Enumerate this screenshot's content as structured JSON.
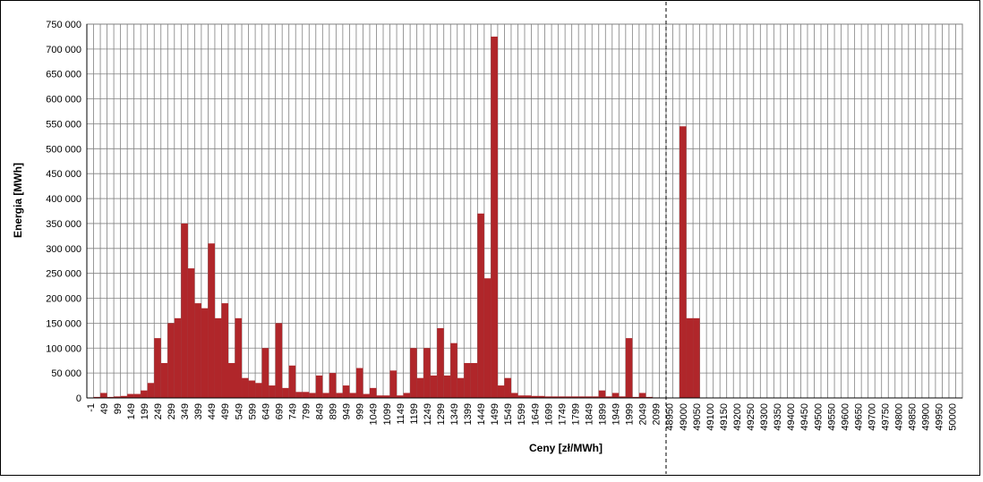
{
  "chart_data": {
    "type": "bar",
    "x_label": "Ceny [zł/MWh]",
    "y_label": "Energia [MWh]",
    "color": "#b0262a",
    "grid": true,
    "categories": [
      "-1",
      null,
      "49",
      null,
      "99",
      null,
      "149",
      null,
      "199",
      null,
      "249",
      null,
      "299",
      null,
      "349",
      null,
      "399",
      null,
      "449",
      null,
      "499",
      null,
      "549",
      null,
      "599",
      null,
      "649",
      null,
      "699",
      null,
      "749",
      null,
      "799",
      null,
      "849",
      null,
      "899",
      null,
      "949",
      null,
      "999",
      null,
      "1049",
      null,
      "1099",
      null,
      "1149",
      null,
      "1199",
      null,
      "1249",
      null,
      "1299",
      null,
      "1349",
      null,
      "1399",
      null,
      "1449",
      null,
      "1499",
      null,
      "1549",
      null,
      "1599",
      null,
      "1649",
      null,
      "1699",
      null,
      "1749",
      null,
      "1799",
      null,
      "1849",
      null,
      "1899",
      null,
      "1949",
      null,
      "1999",
      null,
      "2049",
      null,
      "2099",
      null,
      "48950",
      null,
      "49000",
      null,
      "49050",
      null,
      "49100",
      null,
      "49150",
      null,
      "49200",
      null,
      "49250",
      null,
      "49300",
      null,
      "49350",
      null,
      "49400",
      null,
      "49450",
      null,
      "49500",
      null,
      "49550",
      null,
      "49600",
      null,
      "49650",
      null,
      "49700",
      null,
      "49750",
      null,
      "49800",
      null,
      "49850",
      null,
      "49900",
      null,
      "49950",
      null,
      "50000",
      null
    ],
    "values": [
      0,
      2000,
      10000,
      2000,
      3000,
      4000,
      8000,
      8000,
      15000,
      30000,
      120000,
      70000,
      150000,
      160000,
      350000,
      260000,
      190000,
      180000,
      310000,
      160000,
      190000,
      70000,
      160000,
      40000,
      35000,
      30000,
      100000,
      25000,
      150000,
      20000,
      65000,
      12000,
      12000,
      10000,
      45000,
      10000,
      50000,
      10000,
      25000,
      10000,
      60000,
      8000,
      20000,
      5000,
      5000,
      55000,
      5000,
      10000,
      100000,
      40000,
      100000,
      45000,
      140000,
      45000,
      110000,
      40000,
      70000,
      70000,
      370000,
      240000,
      725000,
      25000,
      40000,
      10000,
      5000,
      5000,
      4000,
      4000,
      3000,
      3000,
      3000,
      3000,
      3000,
      3000,
      3000,
      3000,
      15000,
      3000,
      10000,
      3000,
      120000,
      2000,
      10000,
      2000,
      1000,
      0,
      0,
      0,
      545000,
      160000,
      160000,
      0,
      0,
      0,
      0,
      0,
      0,
      0,
      0,
      0,
      0,
      0,
      0,
      0,
      0,
      0,
      0,
      0,
      0,
      0,
      0,
      0,
      0,
      0,
      0,
      0,
      0,
      0,
      0,
      0,
      0,
      0,
      0,
      0,
      0,
      0,
      0,
      0,
      0,
      0
    ],
    "ylim": [
      0,
      750000
    ],
    "yticks": [
      0,
      {
        "value": 50000,
        "label": "50 000"
      },
      {
        "value": 100000,
        "label": "100 000"
      },
      {
        "value": 150000,
        "label": "150 000"
      },
      {
        "value": 200000,
        "label": "200 000"
      },
      {
        "value": 250000,
        "label": "250 000"
      },
      {
        "value": 300000,
        "label": "300 000"
      },
      {
        "value": 350000,
        "label": "350 000"
      },
      {
        "value": 400000,
        "label": "400 000"
      },
      {
        "value": 450000,
        "label": "450 000"
      },
      {
        "value": 500000,
        "label": "500 000"
      },
      {
        "value": 550000,
        "label": "550 000"
      },
      {
        "value": 600000,
        "label": "600 000"
      },
      {
        "value": 650000,
        "label": "650 000"
      },
      {
        "value": 700000,
        "label": "700 000"
      },
      {
        "value": 750000,
        "label": "750 000"
      }
    ]
  }
}
